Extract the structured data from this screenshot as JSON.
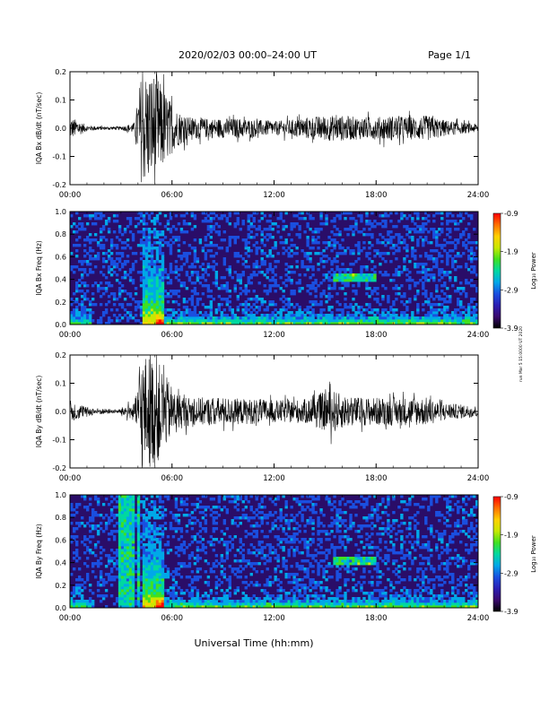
{
  "header": {
    "title": "2020/02/03  00:00–24:00 UT",
    "page": "Page 1/1"
  },
  "side_note": "run Mar 5 15:0000 UT 2020",
  "xlabel": "Universal Time (hh:mm)",
  "colors": {
    "trace": "#000000",
    "colormap": [
      "#000000",
      "#3a0a6e",
      "#2b1fb4",
      "#1a4fe0",
      "#00a8e8",
      "#00d8a0",
      "#40e020",
      "#c8e800",
      "#ffd000",
      "#ff7000",
      "#ff0000"
    ]
  },
  "chart_data": [
    {
      "type": "line",
      "ylabel": "IQA Bx dB/dt (nT/sec)",
      "xlim": [
        0,
        24
      ],
      "ylim": [
        -0.2,
        0.2
      ],
      "xticks": [
        "00:00",
        "06:00",
        "12:00",
        "18:00",
        "24:00"
      ],
      "yticks": [
        "-0.2",
        "-0.1",
        "0.0",
        "0.1",
        "0.2"
      ],
      "envelope": {
        "x": [
          0,
          0.4,
          1,
          2,
          3,
          3.8,
          4.2,
          4.5,
          5.0,
          5.6,
          6.2,
          7,
          8,
          9,
          10,
          11,
          12,
          13,
          14,
          15,
          16,
          17,
          18,
          19,
          20,
          21,
          22,
          23,
          24
        ],
        "amplitude": [
          0.04,
          0.03,
          0.01,
          0.006,
          0.006,
          0.02,
          0.2,
          0.2,
          0.2,
          0.13,
          0.07,
          0.04,
          0.035,
          0.035,
          0.035,
          0.03,
          0.025,
          0.03,
          0.04,
          0.045,
          0.045,
          0.04,
          0.04,
          0.045,
          0.04,
          0.045,
          0.03,
          0.02,
          0.015
        ]
      }
    },
    {
      "type": "heatmap",
      "ylabel": "IQA Bx Freq (Hz)",
      "xlim": [
        0,
        24
      ],
      "ylim": [
        0,
        1.0
      ],
      "xticks": [
        "00:00",
        "06:00",
        "12:00",
        "18:00",
        "24:00"
      ],
      "yticks": [
        "0.0",
        "0.2",
        "0.4",
        "0.6",
        "0.8",
        "1.0"
      ],
      "colorbar": {
        "label": "Log₁₀ Power",
        "range": [
          -3.9,
          -0.9
        ],
        "ticks": [
          "-0.9",
          "-1.9",
          "-2.9",
          "-3.9"
        ]
      },
      "features": {
        "storm_window": [
          4.2,
          5.6
        ],
        "band_040hz": [
          15.5,
          18.0
        ],
        "low_freq_enhancement_after_hour": 5
      }
    },
    {
      "type": "line",
      "ylabel": "IQA By dB/dt (nT/sec)",
      "xlim": [
        0,
        24
      ],
      "ylim": [
        -0.2,
        0.2
      ],
      "xticks": [
        "00:00",
        "06:00",
        "12:00",
        "18:00",
        "24:00"
      ],
      "yticks": [
        "-0.2",
        "-0.1",
        "0.0",
        "0.1",
        "0.2"
      ],
      "envelope": {
        "x": [
          0,
          0.4,
          1,
          2,
          2.8,
          3.2,
          3.8,
          4.2,
          4.5,
          5.0,
          5.6,
          6.2,
          7,
          8,
          9,
          10,
          11,
          12,
          13,
          14,
          15,
          15.5,
          16,
          17,
          18,
          19,
          20,
          21,
          22,
          23,
          24
        ],
        "amplitude": [
          0.04,
          0.03,
          0.015,
          0.01,
          0.006,
          0.02,
          0.03,
          0.2,
          0.2,
          0.2,
          0.13,
          0.07,
          0.05,
          0.05,
          0.05,
          0.045,
          0.045,
          0.04,
          0.04,
          0.045,
          0.07,
          0.075,
          0.06,
          0.05,
          0.05,
          0.05,
          0.05,
          0.05,
          0.03,
          0.025,
          0.02
        ]
      }
    },
    {
      "type": "heatmap",
      "ylabel": "IQA By Freq (Hz)",
      "xlim": [
        0,
        24
      ],
      "ylim": [
        0,
        1.0
      ],
      "xticks": [
        "00:00",
        "06:00",
        "12:00",
        "18:00",
        "24:00"
      ],
      "yticks": [
        "0.0",
        "0.2",
        "0.4",
        "0.6",
        "0.8",
        "1.0"
      ],
      "colorbar": {
        "label": "Log₁₀ Power",
        "range": [
          -3.9,
          -0.9
        ],
        "ticks": [
          "-0.9",
          "-1.9",
          "-2.9",
          "-3.9"
        ]
      },
      "features": {
        "storm_window": [
          4.2,
          5.6
        ],
        "broadband_bursts": [
          [
            2.9,
            3.8
          ],
          [
            4.0,
            4.1
          ]
        ],
        "band_040hz": [
          15.5,
          18.0
        ],
        "low_freq_enhancement_after_hour": 5
      }
    }
  ]
}
